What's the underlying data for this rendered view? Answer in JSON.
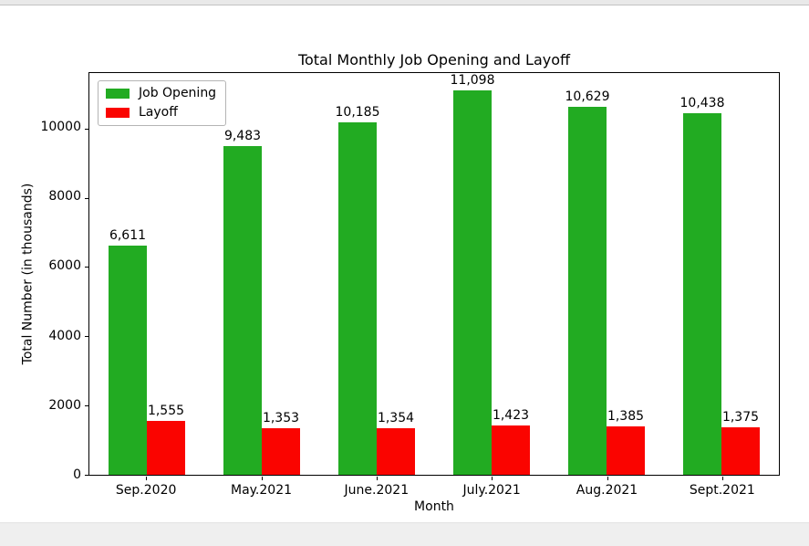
{
  "page": {
    "top_strip_color": "#e9e9e9",
    "bottom_strip_color": "#efefef",
    "plot_background": "#ffffff"
  },
  "chart_data": {
    "type": "bar",
    "title": "Total Monthly Job Opening and Layoff",
    "xlabel": "Month",
    "ylabel": "Total Number (in thousands)",
    "categories": [
      "Sep.2020",
      "May.2021",
      "June.2021",
      "July.2021",
      "Aug.2021",
      "Sept.2021"
    ],
    "series": [
      {
        "name": "Job Opening",
        "color": "#22ab22",
        "values": [
          6611,
          9483,
          10185,
          11098,
          10629,
          10438
        ],
        "labels": [
          "6,611",
          "9,483",
          "10,185",
          "11,098",
          "10,629",
          "10,438"
        ]
      },
      {
        "name": "Layoff",
        "color": "#fa0400",
        "values": [
          1555,
          1353,
          1354,
          1423,
          1385,
          1375
        ],
        "labels": [
          "1,555",
          "1,353",
          "1,354",
          "1,423",
          "1,385",
          "1,375"
        ]
      }
    ],
    "ylim": [
      0,
      11600
    ],
    "yticks": [
      0,
      2000,
      4000,
      6000,
      8000,
      10000
    ],
    "legend_position": "upper left",
    "grid": false
  }
}
